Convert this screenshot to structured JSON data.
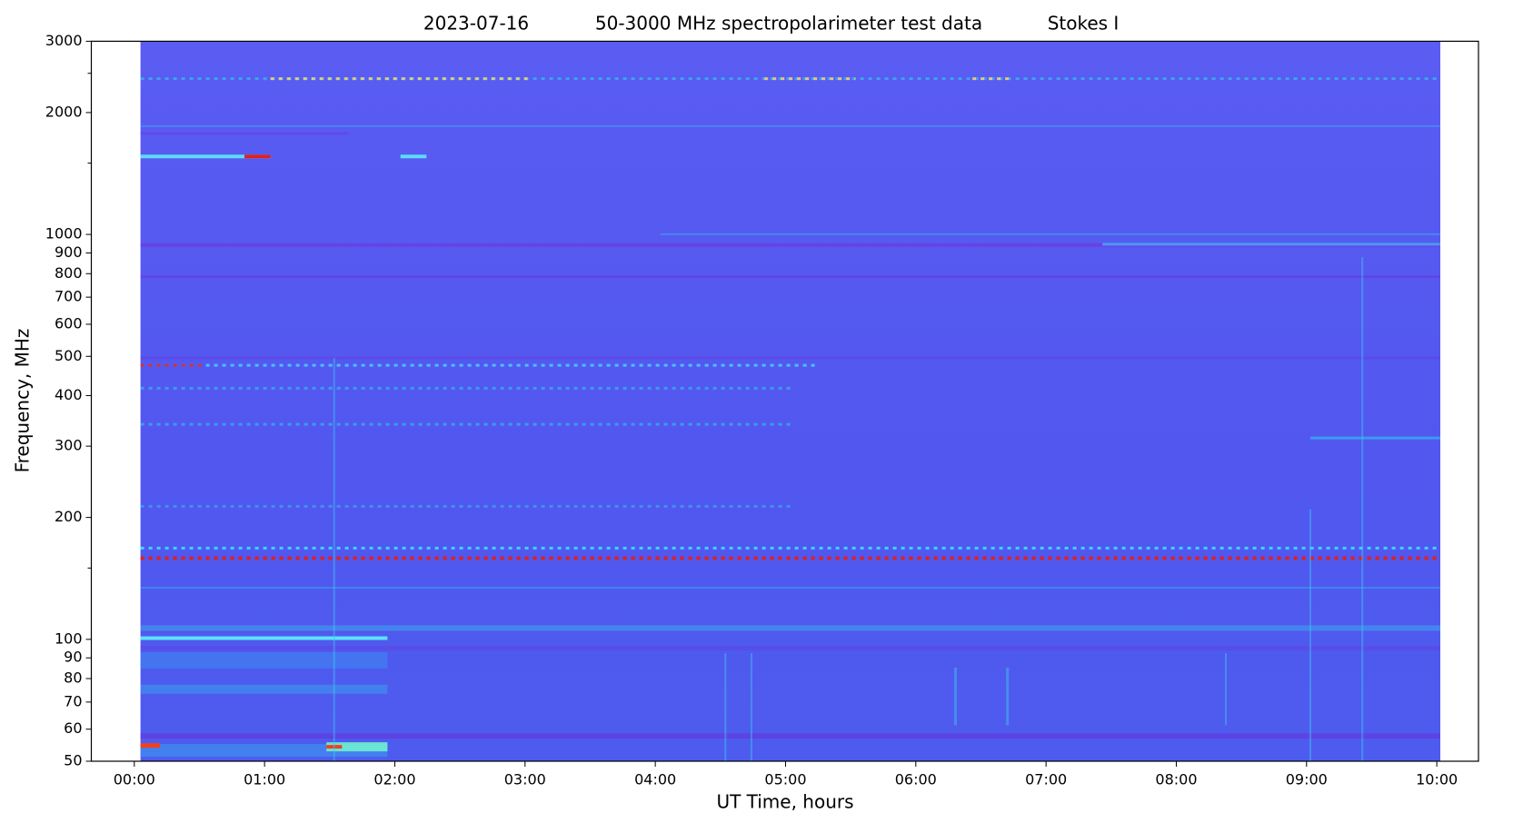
{
  "chart_data": {
    "type": "spectrogram",
    "date": "2023-07-16",
    "title": "50-3000 MHz spectropolarimeter test data",
    "stokes": "Stokes I",
    "x_label": "UT Time, hours",
    "y_label": "Frequency, MHz",
    "xlim": [
      -0.33,
      10.32
    ],
    "xticks": [
      {
        "value": 0,
        "label": "00:00"
      },
      {
        "value": 1,
        "label": "01:00"
      },
      {
        "value": 2,
        "label": "02:00"
      },
      {
        "value": 3,
        "label": "03:00"
      },
      {
        "value": 4,
        "label": "04:00"
      },
      {
        "value": 5,
        "label": "05:00"
      },
      {
        "value": 6,
        "label": "06:00"
      },
      {
        "value": 7,
        "label": "07:00"
      },
      {
        "value": 8,
        "label": "08:00"
      },
      {
        "value": 9,
        "label": "09:00"
      },
      {
        "value": 10,
        "label": "10:00"
      }
    ],
    "ylim": [
      50,
      3000
    ],
    "y_scale": "log",
    "yticks": [
      50,
      60,
      70,
      80,
      90,
      100,
      200,
      300,
      400,
      500,
      600,
      700,
      800,
      900,
      1000,
      2000,
      3000
    ],
    "yticks_minor": [
      150,
      1500,
      2500
    ]
  }
}
